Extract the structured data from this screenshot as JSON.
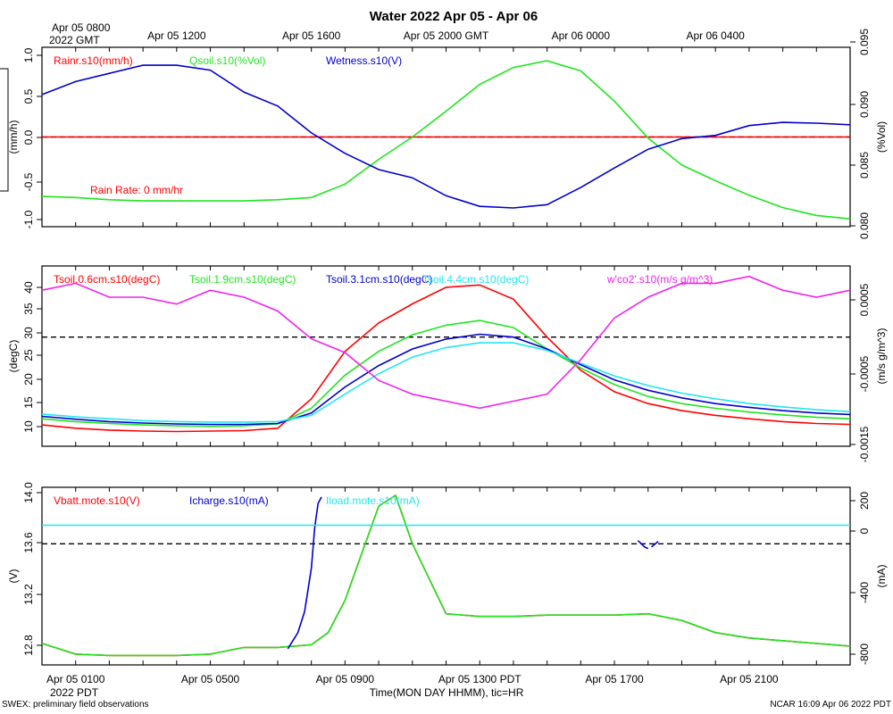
{
  "title": "Water 2022 Apr 05 - Apr 06",
  "top_axis": {
    "start_line1": "Apr 05 0800",
    "start_line2": "2022 GMT",
    "labels": [
      "Apr 05 1200",
      "Apr 05 1600",
      "Apr 05 2000 GMT",
      "Apr 06 0000",
      "Apr 06 0400"
    ]
  },
  "bottom_axis": {
    "labels": [
      "Apr 05 0100",
      "Apr 05 0500",
      "Apr 05 0900",
      "Apr 05 1300 PDT",
      "Apr 05 1700",
      "Apr 05 2100"
    ],
    "year_label": "2022 PDT",
    "xlabel": "Time(MON DAY HHMM), tic=HR"
  },
  "footer": {
    "left": "SWEX: preliminary field observations",
    "right": "NCAR 16:09 Apr 06 2022 PDT"
  },
  "colors": {
    "red": "#ff0000",
    "green": "#1ee61e",
    "blue": "#0000cc",
    "cyan": "#22e6f0",
    "magenta": "#ee22ee"
  },
  "chart_data": [
    {
      "type": "line",
      "panel": "water",
      "ylabel_left": "(mm/h)",
      "ylabel_right": "(%Vol)",
      "ylim_left": [
        -1.1,
        1.1
      ],
      "ylim_right": [
        0.0795,
        0.0955
      ],
      "yticks_left": [
        "1.0",
        "0.5",
        "0.0",
        "-0.5",
        "-1.0"
      ],
      "yticks_right": [
        "0.095",
        "0.090",
        "0.085",
        "0.080"
      ],
      "reference_line": 0.0,
      "annotation": "Rain Rate: 0 mm/hr",
      "x_hours": [
        0,
        1,
        2,
        3,
        4,
        5,
        6,
        7,
        8,
        9,
        10,
        11,
        12,
        13,
        14,
        15,
        16,
        17,
        18,
        19,
        20,
        21,
        22,
        23,
        24
      ],
      "series": [
        {
          "name": "Rainr.s10(mm/h)",
          "color": "red",
          "axis": "left",
          "values": [
            0,
            0,
            0,
            0,
            0,
            0,
            0,
            0,
            0,
            0,
            0,
            0,
            0,
            0,
            0,
            0,
            0,
            0,
            0,
            0,
            0,
            0,
            0,
            0,
            0
          ]
        },
        {
          "name": "Qsoil.s10(%Vol)",
          "color": "green",
          "axis": "right",
          "values": [
            0.0822,
            0.0821,
            0.0819,
            0.0818,
            0.0818,
            0.0818,
            0.0818,
            0.0819,
            0.0821,
            0.0833,
            0.0855,
            0.0875,
            0.0898,
            0.0922,
            0.0937,
            0.0943,
            0.0934,
            0.0907,
            0.0874,
            0.085,
            0.0836,
            0.0823,
            0.0812,
            0.0805,
            0.0802
          ]
        },
        {
          "name": "Wetness.s10(V)",
          "color": "blue",
          "axis": "left",
          "values": [
            0.52,
            0.68,
            0.78,
            0.88,
            0.88,
            0.82,
            0.55,
            0.38,
            0.05,
            -0.2,
            -0.4,
            -0.5,
            -0.72,
            -0.85,
            -0.87,
            -0.83,
            -0.62,
            -0.38,
            -0.15,
            -0.02,
            0.02,
            0.14,
            0.18,
            0.17,
            0.15
          ]
        }
      ]
    },
    {
      "type": "line",
      "panel": "soil-temperature",
      "ylabel_left": "(degC)",
      "ylabel_right": "(m/s g/m^3)",
      "ylim_left": [
        6,
        44
      ],
      "ylim_right": [
        -0.00165,
        0.00095
      ],
      "yticks_left": [
        "40",
        "35",
        "30",
        "25",
        "20",
        "15",
        "10"
      ],
      "yticks_right": [
        "0.0005",
        "-0.0005",
        "-0.0015"
      ],
      "reference_line": 29,
      "x_hours": [
        0,
        1,
        2,
        3,
        4,
        5,
        6,
        7,
        8,
        9,
        10,
        11,
        12,
        13,
        14,
        15,
        16,
        17,
        18,
        19,
        20,
        21,
        22,
        23,
        24
      ],
      "series": [
        {
          "name": "Tsoil.0.6cm.s10(degC)",
          "color": "red",
          "axis": "left",
          "values": [
            10.5,
            9.8,
            9.4,
            9.2,
            9.1,
            9.2,
            9.3,
            9.8,
            16,
            26,
            32,
            36,
            39.5,
            40,
            37,
            29,
            22,
            17.5,
            15,
            13.5,
            12.5,
            11.8,
            11.2,
            10.8,
            10.6
          ]
        },
        {
          "name": "Tsoil.1.9cm.s10(degC)",
          "color": "green",
          "axis": "left",
          "values": [
            11.8,
            11.2,
            10.8,
            10.5,
            10.3,
            10.2,
            10.3,
            10.7,
            14,
            21,
            26,
            29.5,
            31.5,
            32.5,
            31,
            26.5,
            22.5,
            19,
            16.5,
            15,
            14,
            13.2,
            12.6,
            12.1,
            11.8
          ]
        },
        {
          "name": "Tsoil.3.1cm.s10(degC)",
          "color": "blue",
          "axis": "left",
          "values": [
            12.3,
            11.7,
            11.2,
            10.9,
            10.7,
            10.6,
            10.6,
            10.8,
            13,
            18.5,
            23,
            26.5,
            28.6,
            29.6,
            29,
            26.5,
            23.2,
            20,
            17.8,
            16.2,
            15,
            14.2,
            13.5,
            13,
            12.7
          ]
        },
        {
          "name": "Tsoil.4.4cm.s10(degC)",
          "color": "cyan",
          "axis": "left",
          "values": [
            12.8,
            12.2,
            11.8,
            11.4,
            11.2,
            11.1,
            11.1,
            11.2,
            12.5,
            17,
            21.3,
            24.8,
            26.8,
            27.8,
            27.8,
            26.2,
            23.5,
            20.8,
            18.8,
            17.2,
            16,
            15,
            14.3,
            13.7,
            13.3
          ]
        },
        {
          "name": "w'co2'.s10(m/s g/m^3)",
          "color": "magenta",
          "axis": "right",
          "values": [
            0.0006,
            0.0007,
            0.0005,
            0.0005,
            0.0004,
            0.0006,
            0.0005,
            0.0003,
            -0.0001,
            -0.0003,
            -0.0007,
            -0.0009,
            -0.001,
            -0.0011,
            -0.001,
            -0.0009,
            -0.0004,
            0.0002,
            0.0005,
            0.0007,
            0.0007,
            0.0008,
            0.0006,
            0.0005,
            0.0006
          ]
        }
      ]
    },
    {
      "type": "line",
      "panel": "power",
      "ylabel_left": "(V)",
      "ylabel_right": "(mA)",
      "ylim_left": [
        12.72,
        14.04
      ],
      "ylim_right": [
        -850,
        250
      ],
      "yticks_left": [
        "14.0",
        "13.6",
        "13.2",
        "12.8"
      ],
      "yticks_right": [
        "200",
        "0",
        "-400",
        "-800"
      ],
      "reference_line": 13.62,
      "x_hours": [
        0,
        1,
        2,
        3,
        4,
        5,
        6,
        7,
        8,
        8.5,
        9,
        9.5,
        10,
        10.5,
        11,
        12,
        13,
        14,
        15,
        16,
        17,
        18,
        19,
        20,
        21,
        22,
        23,
        24
      ],
      "series": [
        {
          "name": "Vbatt.mote.s10(V)",
          "color": "red",
          "axis": "left",
          "values": [
            12.88,
            12.8,
            12.79,
            12.79,
            12.79,
            12.8,
            12.85,
            12.85,
            12.87,
            12.96,
            13.2,
            13.55,
            13.9,
            13.98,
            13.62,
            13.1,
            13.08,
            13.08,
            13.09,
            13.09,
            13.09,
            13.1,
            13.05,
            12.96,
            12.92,
            12.9,
            12.88,
            12.86
          ]
        },
        {
          "name": "Vbatt.mote.s10(V)",
          "color": "green",
          "axis": "left",
          "values": [
            12.88,
            12.8,
            12.79,
            12.79,
            12.79,
            12.8,
            12.85,
            12.85,
            12.87,
            12.96,
            13.2,
            13.55,
            13.9,
            13.98,
            13.62,
            13.1,
            13.08,
            13.08,
            13.09,
            13.09,
            13.09,
            13.1,
            13.05,
            12.96,
            12.92,
            12.9,
            12.88,
            12.86
          ]
        },
        {
          "name": "Icharge.s10(mA)",
          "color": "blue",
          "axis": "right",
          "segments": [
            {
              "x_hours": [
                7.3,
                7.6,
                7.8,
                8.0,
                8.1,
                8.2,
                8.3
              ],
              "values": [
                -750,
                -650,
                -520,
                -250,
                0,
                150,
                190
              ]
            },
            {
              "x_hours": [
                17.7,
                17.9,
                18.0
              ],
              "values": [
                -80,
                -120,
                -130
              ]
            },
            {
              "x_hours": [
                18.1,
                18.3
              ],
              "values": [
                -120,
                -85
              ]
            }
          ]
        },
        {
          "name": "Iload.mote.s10(mA)",
          "color": "cyan",
          "axis": "right",
          "values": [
            15,
            15,
            15,
            15,
            15,
            15,
            15,
            15,
            15,
            15,
            15,
            15,
            15,
            15,
            15,
            15,
            15,
            15,
            15,
            15,
            15,
            15,
            15,
            15,
            15,
            15,
            15,
            15
          ]
        }
      ]
    }
  ]
}
